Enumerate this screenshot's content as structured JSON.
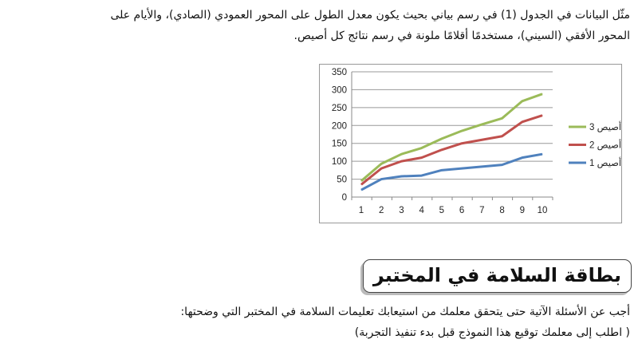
{
  "intro": {
    "line1": "مثّل البيانات في الجدول (1) في رسم بياني بحيث يكون معدل الطول على المحور العمودي (الصادي)، والأيام على",
    "line2": "المحور الأفقي (السيني)، مستخدمًا أقلامًا ملونة في رسم نتائج كل أصيص."
  },
  "chart_data": {
    "type": "line",
    "x": [
      1,
      2,
      3,
      4,
      5,
      6,
      7,
      8,
      9,
      10
    ],
    "ylim": [
      0,
      350
    ],
    "yticks": [
      0,
      50,
      100,
      150,
      200,
      250,
      300,
      350
    ],
    "grid": true,
    "legend_position": "right",
    "series": [
      {
        "name": "أصيص 3",
        "color": "#9BBB59",
        "values": [
          45,
          93,
          120,
          137,
          163,
          185,
          203,
          220,
          268,
          288
        ]
      },
      {
        "name": "أصيص 2",
        "color": "#C0504D",
        "values": [
          35,
          80,
          100,
          110,
          132,
          150,
          160,
          170,
          210,
          228
        ]
      },
      {
        "name": "أصيص 1",
        "color": "#4F81BD",
        "values": [
          20,
          50,
          58,
          60,
          75,
          80,
          85,
          90,
          110,
          120
        ]
      }
    ]
  },
  "card": {
    "title": "بطاقة السلامة في المختبر"
  },
  "instructions": {
    "line1": "أجب عن الأسئلة الآتية حتى يتحقق معلمك من استيعابك تعليمات السلامة في المختبر التي وضحتها:",
    "line2": "( اطلب إلى معلمك توقيع هذا النموذج قبل بدء تنفيذ التجربة)"
  }
}
